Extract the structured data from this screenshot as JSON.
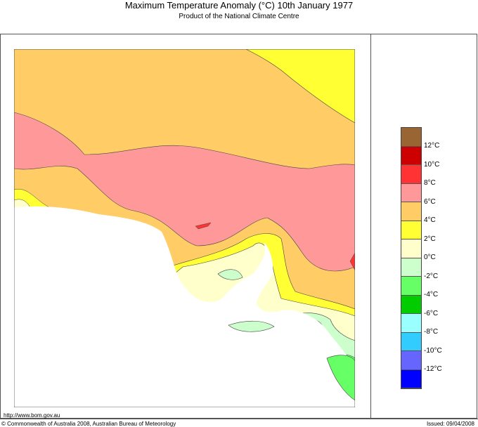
{
  "header": {
    "title": "Maximum Temperature Anomaly (°C)  10th January 1977",
    "subtitle": "Product of the National Climate Centre"
  },
  "legend": {
    "colors": [
      "#996633",
      "#cc0000",
      "#ff3333",
      "#ff9999",
      "#ffcc66",
      "#ffff33",
      "#ffffcc",
      "#ccffcc",
      "#66ff66",
      "#00cc00",
      "#99ffff",
      "#33ccff",
      "#6666ff",
      "#0000ff"
    ],
    "labels": [
      "12°C",
      "10°C",
      "8°C",
      "6°C",
      "4°C",
      "2°C",
      "0°C",
      "-2°C",
      "-4°C",
      "-6°C",
      "-8°C",
      "-10°C",
      "-12°C"
    ]
  },
  "footer": {
    "url": "http://www.bom.gov.au",
    "copyright": "© Commonwealth of Australia 2008, Australian Bureau of Meteorology",
    "issued": "Issued: 09/04/2008"
  }
}
